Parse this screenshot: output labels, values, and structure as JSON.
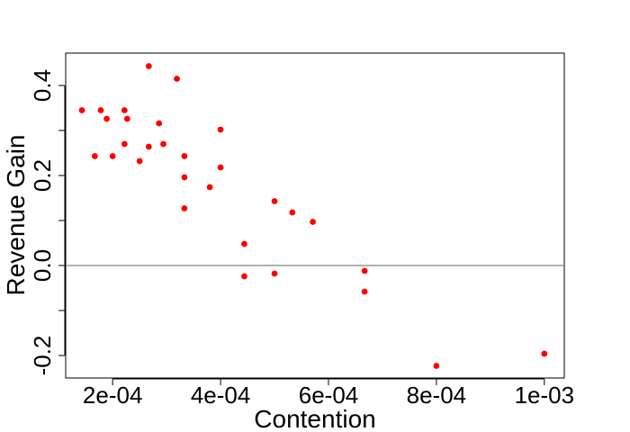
{
  "chart_data": {
    "type": "scatter",
    "title": "",
    "xlabel": "Contention",
    "ylabel": "Revenue Gain",
    "xlim": [
      0.000113,
      0.001037
    ],
    "ylim": [
      -0.25,
      0.472
    ],
    "x_ticks": [
      0.0002,
      0.0004,
      0.0006,
      0.0008,
      0.001
    ],
    "x_tick_labels": [
      "2e-04",
      "4e-04",
      "6e-04",
      "8e-04",
      "1e-03"
    ],
    "y_ticks": [
      -0.2,
      -0.1,
      0.0,
      0.1,
      0.2,
      0.3,
      0.4
    ],
    "y_tick_labels": [
      "-0.2",
      "",
      "0.0",
      "",
      "0.2",
      "",
      "0.4"
    ],
    "reference_line_y": 0,
    "grid": false,
    "point_color": "#ff0000",
    "line_color": "#808080",
    "points": [
      {
        "x": 0.000143,
        "y": 0.345
      },
      {
        "x": 0.000167,
        "y": 0.243
      },
      {
        "x": 0.000178,
        "y": 0.345
      },
      {
        "x": 0.000189,
        "y": 0.326
      },
      {
        "x": 0.0002,
        "y": 0.243
      },
      {
        "x": 0.000222,
        "y": 0.345
      },
      {
        "x": 0.000222,
        "y": 0.27
      },
      {
        "x": 0.000227,
        "y": 0.326
      },
      {
        "x": 0.00025,
        "y": 0.232
      },
      {
        "x": 0.000267,
        "y": 0.443
      },
      {
        "x": 0.000267,
        "y": 0.264
      },
      {
        "x": 0.000286,
        "y": 0.316
      },
      {
        "x": 0.000294,
        "y": 0.27
      },
      {
        "x": 0.000319,
        "y": 0.415
      },
      {
        "x": 0.000333,
        "y": 0.243
      },
      {
        "x": 0.000333,
        "y": 0.196
      },
      {
        "x": 0.000333,
        "y": 0.127
      },
      {
        "x": 0.00038,
        "y": 0.174
      },
      {
        "x": 0.0004,
        "y": 0.302
      },
      {
        "x": 0.0004,
        "y": 0.218
      },
      {
        "x": 0.000444,
        "y": 0.048
      },
      {
        "x": 0.000444,
        "y": -0.024
      },
      {
        "x": 0.0005,
        "y": 0.143
      },
      {
        "x": 0.0005,
        "y": -0.018
      },
      {
        "x": 0.000533,
        "y": 0.118
      },
      {
        "x": 0.000571,
        "y": 0.097
      },
      {
        "x": 0.000667,
        "y": -0.012
      },
      {
        "x": 0.000667,
        "y": -0.058
      },
      {
        "x": 0.0008,
        "y": -0.223
      },
      {
        "x": 0.001,
        "y": -0.196
      }
    ]
  }
}
